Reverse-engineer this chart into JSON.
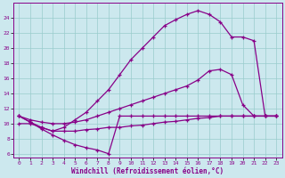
{
  "bg_color": "#cce8ee",
  "line_color": "#880088",
  "grid_color": "#99cccc",
  "xlabel": "Windchill (Refroidissement éolien,°C)",
  "xlim_min": -0.5,
  "xlim_max": 23.5,
  "ylim_min": 5.5,
  "ylim_max": 26.0,
  "yticks": [
    6,
    8,
    10,
    12,
    14,
    16,
    18,
    20,
    22,
    24
  ],
  "xticks": [
    0,
    1,
    2,
    3,
    4,
    5,
    6,
    7,
    8,
    9,
    10,
    11,
    12,
    13,
    14,
    15,
    16,
    17,
    18,
    19,
    20,
    21,
    22,
    23
  ],
  "line_A_x": [
    0,
    1,
    2,
    3,
    4,
    5,
    6,
    7,
    8,
    9,
    10,
    11,
    12,
    13,
    14,
    15,
    16,
    17,
    18,
    19,
    20,
    21,
    22,
    23
  ],
  "line_A_y": [
    11,
    10.2,
    9.5,
    9.0,
    9.5,
    10.5,
    11.5,
    13.0,
    14.5,
    16.5,
    18.5,
    20.0,
    21.5,
    23.0,
    23.8,
    24.5,
    25.0,
    24.5,
    23.5,
    21.5,
    21.5,
    21.0,
    11.0,
    11.0
  ],
  "line_B_x": [
    0,
    1,
    2,
    3,
    4,
    5,
    6,
    7,
    8,
    9,
    10,
    11,
    12,
    13,
    14,
    15,
    16,
    17,
    18,
    19,
    20,
    21,
    22,
    23
  ],
  "line_B_y": [
    11,
    10.5,
    10.2,
    10.0,
    10.0,
    10.2,
    10.5,
    11.0,
    11.5,
    12.0,
    12.5,
    13.0,
    13.5,
    14.0,
    14.5,
    15.0,
    15.8,
    17.0,
    17.2,
    16.5,
    12.5,
    11.0,
    11.0,
    11.0
  ],
  "line_C_x": [
    0,
    1,
    2,
    3,
    4,
    5,
    6,
    7,
    8,
    9,
    10,
    11,
    12,
    13,
    14,
    15,
    16,
    17,
    18,
    19,
    20,
    21,
    22,
    23
  ],
  "line_C_y": [
    10.0,
    10.0,
    9.5,
    9.0,
    9.0,
    9.0,
    9.2,
    9.3,
    9.5,
    9.5,
    9.7,
    9.8,
    10.0,
    10.2,
    10.3,
    10.5,
    10.7,
    10.8,
    11.0,
    11.0,
    11.0,
    11.0,
    11.0,
    11.0
  ],
  "line_D_x": [
    0,
    1,
    2,
    3,
    4,
    5,
    6,
    7,
    8,
    9,
    10,
    11,
    12,
    13,
    14,
    15,
    16,
    17,
    18,
    19,
    20,
    21,
    22,
    23
  ],
  "line_D_y": [
    11.0,
    10.2,
    9.3,
    8.5,
    7.8,
    7.2,
    6.8,
    6.5,
    6.0,
    11.0,
    11.0,
    11.0,
    11.0,
    11.0,
    11.0,
    11.0,
    11.0,
    11.0,
    11.0,
    11.0,
    11.0,
    11.0,
    11.0,
    11.0
  ]
}
